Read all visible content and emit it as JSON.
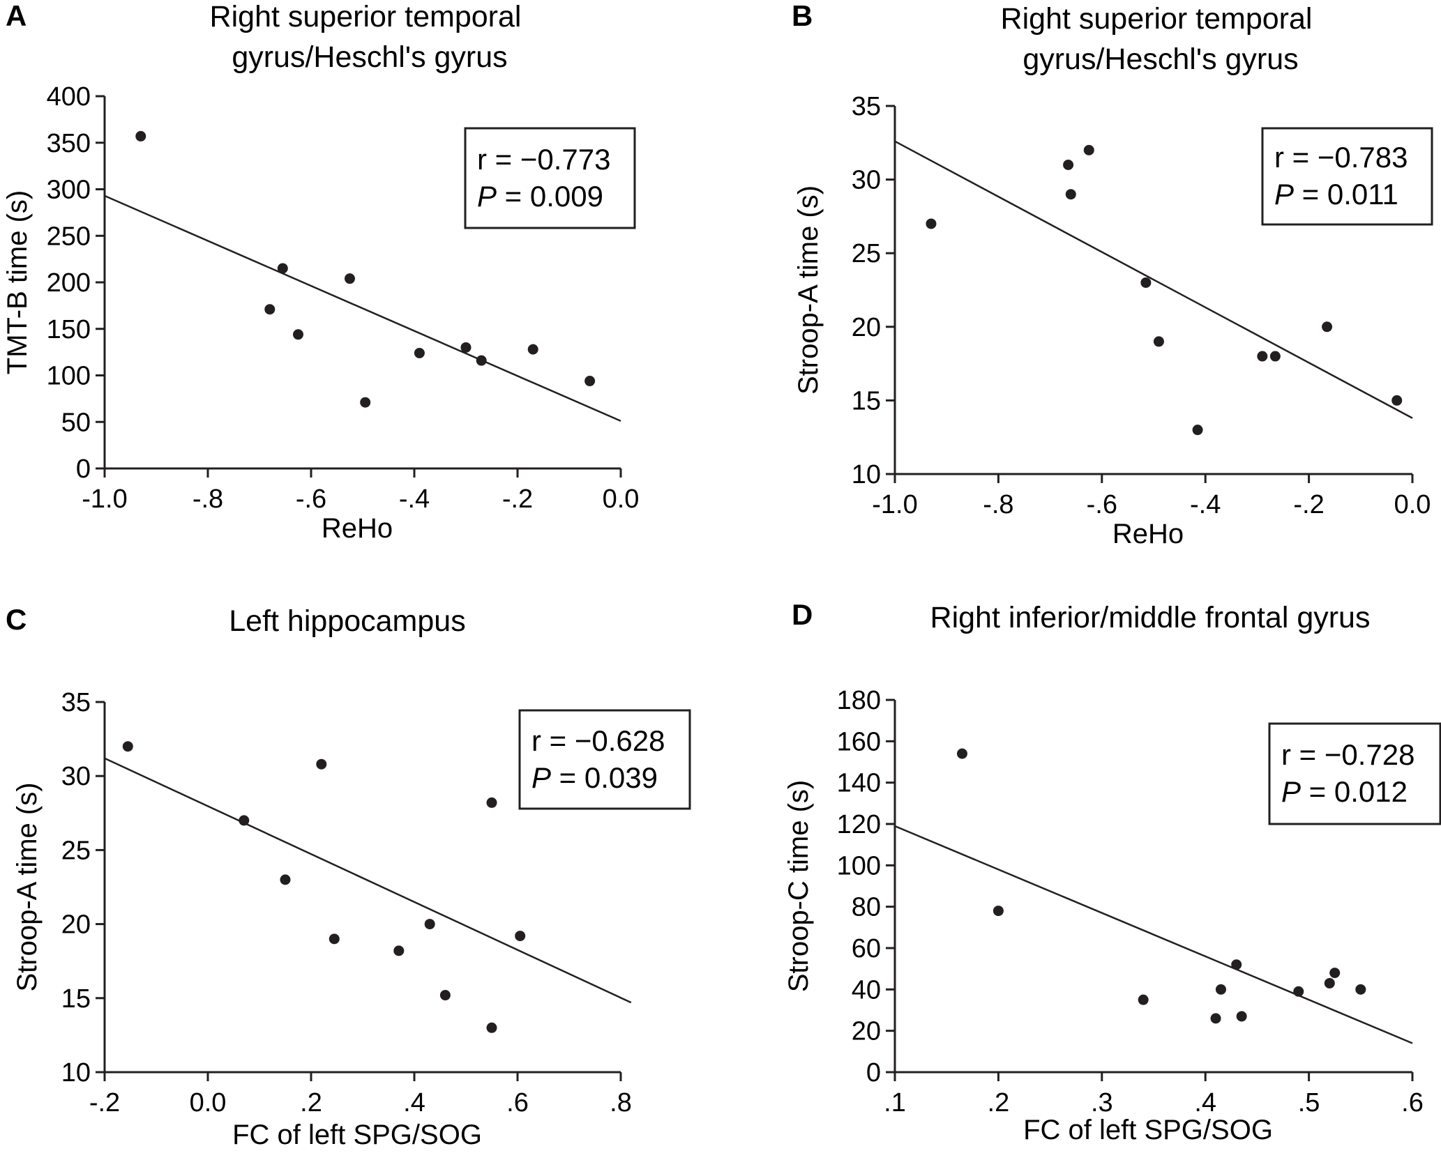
{
  "figure": {
    "panels": [
      {
        "letter": "A",
        "title_lines": [
          "Right superior temporal",
          "gyrus/Heschl's gyrus"
        ],
        "stats": {
          "r": "r = −0.773",
          "p_symbol": "P",
          "p_rest": " = 0.009"
        }
      },
      {
        "letter": "B",
        "title_lines": [
          "Right superior temporal",
          "gyrus/Heschl's gyrus"
        ],
        "stats": {
          "r": "r = −0.783",
          "p_symbol": "P",
          "p_rest": " = 0.011"
        }
      },
      {
        "letter": "C",
        "title_lines": [
          "Left hippocampus"
        ],
        "stats": {
          "r": "r = −0.628",
          "p_symbol": "P",
          "p_rest": " = 0.039"
        }
      },
      {
        "letter": "D",
        "title_lines": [
          "Right inferior/middle frontal gyrus"
        ],
        "stats": {
          "r": "r = −0.728",
          "p_symbol": "P",
          "p_rest": " = 0.012"
        }
      }
    ]
  },
  "chart_data": [
    {
      "type": "scatter",
      "title": "Right superior temporal gyrus/Heschl's gyrus",
      "xlabel": "ReHo",
      "ylabel": "TMT-B time (s)",
      "xlim": [
        -1.0,
        0.0
      ],
      "ylim": [
        0,
        400
      ],
      "xticks": [
        -1.0,
        -0.8,
        -0.6,
        -0.4,
        -0.2,
        0.0
      ],
      "xtick_labels": [
        "-1.0",
        "-.8",
        "-.6",
        "-.4",
        "-.2",
        "0.0"
      ],
      "yticks": [
        0,
        50,
        100,
        150,
        200,
        250,
        300,
        350,
        400
      ],
      "ytick_labels": [
        "0",
        "50",
        "100",
        "150",
        "200",
        "250",
        "300",
        "350",
        "400"
      ],
      "points": [
        {
          "x": -0.93,
          "y": 357
        },
        {
          "x": -0.655,
          "y": 215
        },
        {
          "x": -0.68,
          "y": 171
        },
        {
          "x": -0.625,
          "y": 144
        },
        {
          "x": -0.525,
          "y": 204
        },
        {
          "x": -0.495,
          "y": 71
        },
        {
          "x": -0.39,
          "y": 124
        },
        {
          "x": -0.3,
          "y": 130
        },
        {
          "x": -0.27,
          "y": 116
        },
        {
          "x": -0.17,
          "y": 128
        },
        {
          "x": -0.06,
          "y": 94
        }
      ],
      "fit_line": {
        "x": [
          -1.0,
          0.0
        ],
        "y": [
          293,
          51
        ]
      },
      "grid": false
    },
    {
      "type": "scatter",
      "title": "Right superior temporal gyrus/Heschl's gyrus",
      "xlabel": "ReHo",
      "ylabel": "Stroop-A time (s)",
      "xlim": [
        -1.0,
        0.0
      ],
      "ylim": [
        10,
        35
      ],
      "xticks": [
        -1.0,
        -0.8,
        -0.6,
        -0.4,
        -0.2,
        0.0
      ],
      "xtick_labels": [
        "-1.0",
        "-.8",
        "-.6",
        "-.4",
        "-.2",
        "0.0"
      ],
      "yticks": [
        10,
        15,
        20,
        25,
        30,
        35
      ],
      "ytick_labels": [
        "10",
        "15",
        "20",
        "25",
        "30",
        "35"
      ],
      "points": [
        {
          "x": -0.93,
          "y": 27
        },
        {
          "x": -0.665,
          "y": 31
        },
        {
          "x": -0.66,
          "y": 29
        },
        {
          "x": -0.625,
          "y": 32
        },
        {
          "x": -0.515,
          "y": 23
        },
        {
          "x": -0.49,
          "y": 19
        },
        {
          "x": -0.415,
          "y": 13
        },
        {
          "x": -0.29,
          "y": 18
        },
        {
          "x": -0.265,
          "y": 18
        },
        {
          "x": -0.165,
          "y": 20
        },
        {
          "x": -0.03,
          "y": 15
        }
      ],
      "fit_line": {
        "x": [
          -1.0,
          0.0
        ],
        "y": [
          32.6,
          13.8
        ]
      },
      "grid": false
    },
    {
      "type": "scatter",
      "title": "Left hippocampus",
      "xlabel": "FC of left SPG/SOG",
      "ylabel": "Stroop-A time (s)",
      "xlim": [
        -0.2,
        0.8
      ],
      "ylim": [
        10,
        35
      ],
      "xticks": [
        -0.2,
        0.0,
        0.2,
        0.4,
        0.6,
        0.8
      ],
      "xtick_labels": [
        "-.2",
        "0.0",
        ".2",
        ".4",
        ".6",
        ".8"
      ],
      "yticks": [
        10,
        15,
        20,
        25,
        30,
        35
      ],
      "ytick_labels": [
        "10",
        "15",
        "20",
        "25",
        "30",
        "35"
      ],
      "points": [
        {
          "x": -0.155,
          "y": 32
        },
        {
          "x": 0.07,
          "y": 27
        },
        {
          "x": 0.15,
          "y": 23
        },
        {
          "x": 0.22,
          "y": 30.8
        },
        {
          "x": 0.245,
          "y": 19
        },
        {
          "x": 0.37,
          "y": 18.2
        },
        {
          "x": 0.43,
          "y": 20
        },
        {
          "x": 0.46,
          "y": 15.2
        },
        {
          "x": 0.55,
          "y": 28.2
        },
        {
          "x": 0.55,
          "y": 13
        },
        {
          "x": 0.605,
          "y": 19.2
        }
      ],
      "fit_line": {
        "x": [
          -0.2,
          0.82
        ],
        "y": [
          31.2,
          14.7
        ]
      },
      "grid": false
    },
    {
      "type": "scatter",
      "title": "Right inferior/middle frontal gyrus",
      "xlabel": "FC of left SPG/SOG",
      "ylabel": "Stroop-C time (s)",
      "xlim": [
        0.1,
        0.6
      ],
      "ylim": [
        0,
        180
      ],
      "xticks": [
        0.1,
        0.2,
        0.3,
        0.4,
        0.5,
        0.6
      ],
      "xtick_labels": [
        ".1",
        ".2",
        ".3",
        ".4",
        ".5",
        ".6"
      ],
      "yticks": [
        0,
        20,
        40,
        60,
        80,
        100,
        120,
        140,
        160,
        180
      ],
      "ytick_labels": [
        "0",
        "20",
        "40",
        "60",
        "80",
        "100",
        "120",
        "140",
        "160",
        "180"
      ],
      "points": [
        {
          "x": 0.165,
          "y": 154
        },
        {
          "x": 0.2,
          "y": 78
        },
        {
          "x": 0.34,
          "y": 35
        },
        {
          "x": 0.41,
          "y": 26
        },
        {
          "x": 0.415,
          "y": 40
        },
        {
          "x": 0.43,
          "y": 52
        },
        {
          "x": 0.435,
          "y": 27
        },
        {
          "x": 0.49,
          "y": 39
        },
        {
          "x": 0.52,
          "y": 43
        },
        {
          "x": 0.525,
          "y": 48
        },
        {
          "x": 0.55,
          "y": 40
        }
      ],
      "fit_line": {
        "x": [
          0.1,
          0.6
        ],
        "y": [
          119,
          14
        ]
      },
      "grid": false
    }
  ]
}
